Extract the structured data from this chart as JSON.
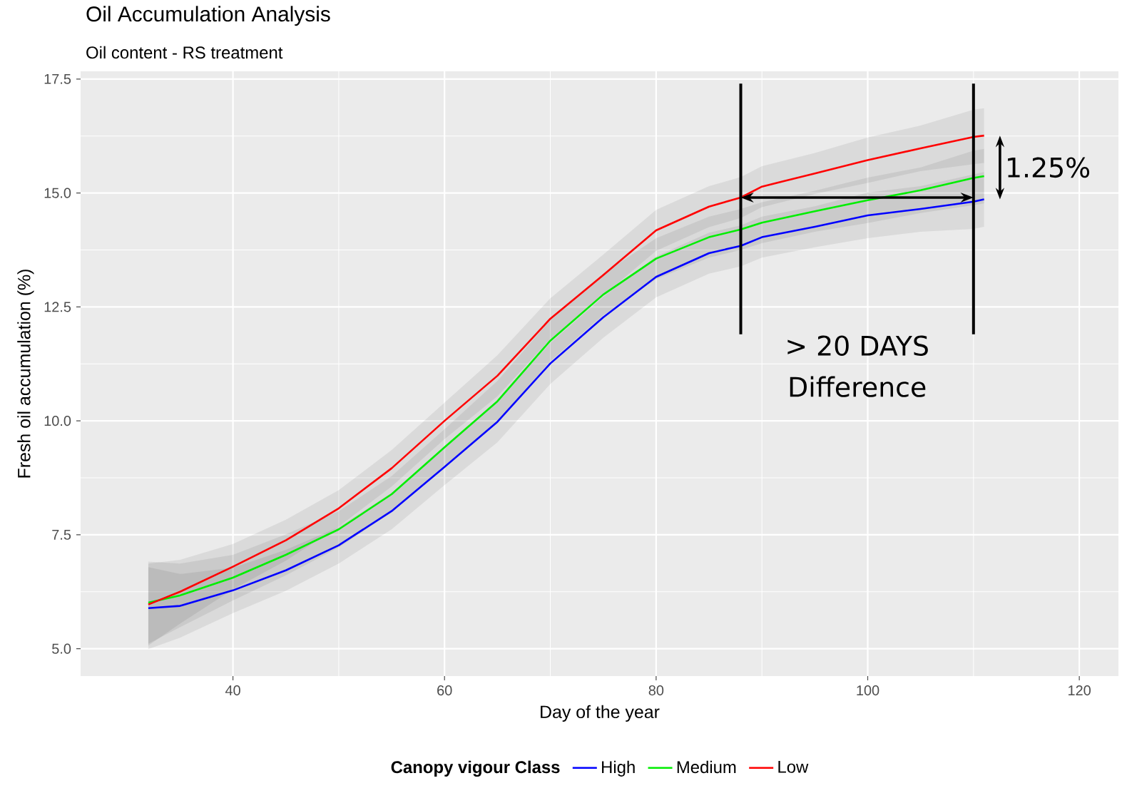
{
  "chart_data": {
    "type": "line",
    "title": "Oil Accumulation Analysis",
    "subtitle": "Oil content - RS treatment",
    "xlabel": "Day of the year",
    "ylabel": "Fresh oil accumulation (%)",
    "legend_title": "Canopy vigour Class",
    "x": [
      32,
      35,
      40,
      45,
      50,
      55,
      60,
      65,
      70,
      75,
      80,
      85,
      88,
      90,
      95,
      100,
      105,
      110,
      111
    ],
    "series": [
      {
        "name": "High",
        "color": "#0000ff",
        "values": [
          5.89,
          5.94,
          6.28,
          6.72,
          7.27,
          8.02,
          8.99,
          9.98,
          11.26,
          12.27,
          13.16,
          13.68,
          13.84,
          14.03,
          14.26,
          14.51,
          14.65,
          14.81,
          14.86
        ],
        "lower": [
          4.99,
          5.24,
          5.78,
          6.27,
          6.87,
          7.62,
          8.59,
          9.53,
          10.81,
          11.82,
          12.71,
          13.23,
          13.39,
          13.58,
          13.81,
          14.01,
          14.15,
          14.21,
          14.26
        ],
        "upper": [
          6.79,
          6.64,
          6.78,
          7.17,
          7.67,
          8.42,
          9.39,
          10.43,
          11.71,
          12.72,
          13.61,
          14.13,
          14.29,
          14.48,
          14.71,
          15.01,
          15.15,
          15.41,
          15.46
        ]
      },
      {
        "name": "Medium",
        "color": "#00ee00",
        "values": [
          6.01,
          6.17,
          6.56,
          7.06,
          7.62,
          8.39,
          9.42,
          10.43,
          11.76,
          12.77,
          13.56,
          14.03,
          14.2,
          14.35,
          14.6,
          14.84,
          15.06,
          15.33,
          15.37
        ],
        "lower": [
          5.11,
          5.47,
          6.06,
          6.61,
          7.22,
          7.99,
          9.02,
          9.98,
          11.31,
          12.32,
          13.11,
          13.58,
          13.75,
          13.9,
          14.15,
          14.34,
          14.56,
          14.73,
          14.77
        ],
        "upper": [
          6.91,
          6.87,
          7.06,
          7.51,
          8.02,
          8.79,
          9.82,
          10.88,
          12.21,
          13.22,
          14.01,
          14.48,
          14.65,
          14.8,
          15.05,
          15.34,
          15.56,
          15.93,
          15.97
        ]
      },
      {
        "name": "Low",
        "color": "#ff0000",
        "values": [
          5.97,
          6.25,
          6.8,
          7.38,
          8.08,
          8.96,
          10.0,
          10.99,
          12.24,
          13.2,
          14.18,
          14.7,
          14.9,
          15.14,
          15.43,
          15.72,
          15.98,
          16.23,
          16.26
        ],
        "lower": [
          5.07,
          5.55,
          6.3,
          6.93,
          7.68,
          8.56,
          9.6,
          10.54,
          11.79,
          12.75,
          13.73,
          14.25,
          14.45,
          14.69,
          14.98,
          15.22,
          15.48,
          15.63,
          15.66
        ],
        "upper": [
          6.87,
          6.95,
          7.3,
          7.83,
          8.48,
          9.36,
          10.4,
          11.44,
          12.69,
          13.65,
          14.63,
          15.15,
          15.35,
          15.59,
          15.88,
          16.22,
          16.48,
          16.83,
          16.86
        ]
      }
    ],
    "xlim": [
      25.6,
      123.7
    ],
    "ylim": [
      4.4,
      17.67
    ],
    "xticks": [
      40,
      60,
      80,
      100,
      120
    ],
    "yticks": [
      {
        "value": 5,
        "label": "5.0"
      },
      {
        "value": 7.5,
        "label": "7.5"
      },
      {
        "value": 10,
        "label": "10.0"
      },
      {
        "value": 12.5,
        "label": "12.5"
      },
      {
        "value": 15,
        "label": "15.0"
      },
      {
        "value": 17.5,
        "label": "17.5"
      }
    ],
    "ref_lines": [
      {
        "axis": "x",
        "value": 88,
        "color": "#000000"
      },
      {
        "axis": "x",
        "value": 110,
        "color": "#000000"
      }
    ],
    "annotations": [
      "> 20 DAYS",
      "Difference",
      "1.25%"
    ],
    "grid": true,
    "legend": "bottom",
    "marker": "none"
  }
}
